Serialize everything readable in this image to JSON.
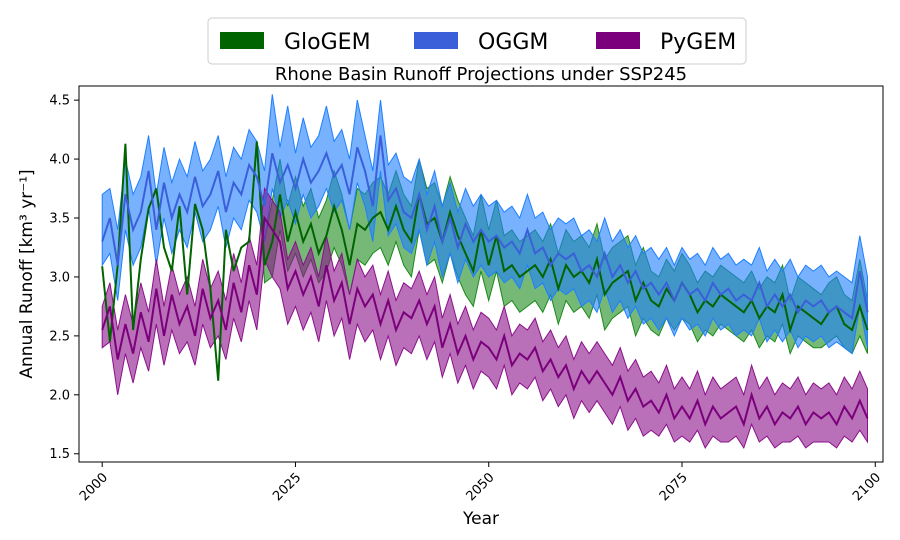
{
  "chart_data": {
    "type": "area",
    "title": "Rhone Basin Runoff Projections under SSP245",
    "xlabel": "Year",
    "ylabel": "Annual Runoff [km³ yr⁻¹]",
    "xlim": [
      1997,
      2101
    ],
    "ylim": [
      1.43,
      4.62
    ],
    "xticks": [
      2000,
      2025,
      2050,
      2075,
      2100
    ],
    "yticks": [
      1.5,
      2.0,
      2.5,
      3.0,
      3.5,
      4.0,
      4.5
    ],
    "grid": false,
    "legend_position": "top-center",
    "start_year": 2000,
    "series": [
      {
        "name": "GloGEM",
        "line_color": "#006400",
        "fill_color": "#1a8a1a",
        "fill_alpha": 0.6,
        "mean": [
          3.09,
          2.45,
          3.1,
          4.13,
          2.55,
          3.15,
          3.58,
          3.75,
          3.25,
          3.05,
          3.6,
          2.85,
          3.62,
          3.4,
          2.9,
          2.12,
          3.4,
          3.05,
          3.25,
          3.3,
          4.15,
          3.1,
          3.3,
          3.7,
          3.3,
          3.55,
          3.3,
          3.45,
          3.2,
          3.35,
          3.6,
          3.4,
          3.1,
          3.45,
          3.4,
          3.5,
          3.55,
          3.4,
          3.6,
          3.4,
          3.3,
          3.7,
          3.45,
          3.5,
          3.3,
          3.55,
          3.35,
          3.2,
          3.05,
          3.4,
          3.1,
          3.35,
          3.05,
          3.1,
          3.0,
          3.05,
          3.1,
          3.0,
          3.15,
          2.9,
          3.1,
          3.0,
          3.05,
          2.95,
          3.15,
          2.85,
          2.95,
          3.0,
          3.05,
          2.8,
          2.95,
          2.8,
          2.75,
          2.9,
          2.8,
          2.95,
          2.85,
          2.7,
          2.8,
          2.75,
          2.85,
          2.8,
          2.75,
          2.7,
          2.8,
          2.65,
          2.75,
          2.7,
          2.85,
          2.55,
          2.75,
          2.7,
          2.65,
          2.6,
          2.7,
          2.75,
          2.6,
          2.55,
          2.75,
          2.55
        ],
        "lower": [
          3.09,
          2.45,
          3.1,
          4.13,
          2.55,
          3.15,
          3.58,
          3.75,
          3.25,
          3.05,
          3.6,
          2.85,
          3.62,
          3.4,
          2.9,
          2.12,
          3.4,
          3.05,
          3.25,
          3.3,
          4.15,
          2.95,
          3.0,
          3.4,
          3.05,
          3.2,
          3.0,
          3.15,
          2.95,
          3.05,
          3.25,
          3.1,
          2.85,
          3.15,
          3.1,
          3.2,
          3.25,
          3.1,
          3.3,
          3.1,
          3.0,
          3.4,
          3.1,
          3.15,
          2.95,
          3.2,
          3.0,
          2.85,
          2.75,
          3.05,
          2.8,
          3.05,
          2.75,
          2.8,
          2.7,
          2.75,
          2.8,
          2.7,
          2.85,
          2.6,
          2.8,
          2.7,
          2.75,
          2.65,
          2.85,
          2.55,
          2.65,
          2.7,
          2.75,
          2.5,
          2.65,
          2.55,
          2.5,
          2.65,
          2.55,
          2.65,
          2.6,
          2.45,
          2.55,
          2.5,
          2.6,
          2.55,
          2.5,
          2.45,
          2.55,
          2.4,
          2.5,
          2.45,
          2.6,
          2.35,
          2.5,
          2.45,
          2.4,
          2.4,
          2.45,
          2.5,
          2.4,
          2.35,
          2.5,
          2.35
        ],
        "upper": [
          3.09,
          2.45,
          3.1,
          4.13,
          2.55,
          3.15,
          3.58,
          3.75,
          3.25,
          3.05,
          3.6,
          2.85,
          3.62,
          3.4,
          2.9,
          2.12,
          3.4,
          3.05,
          3.25,
          3.3,
          4.15,
          3.3,
          3.65,
          4.0,
          3.6,
          3.85,
          3.6,
          3.75,
          3.5,
          3.65,
          3.9,
          3.7,
          3.4,
          3.75,
          3.7,
          3.8,
          3.85,
          3.7,
          3.9,
          3.7,
          3.6,
          4.0,
          3.75,
          3.8,
          3.6,
          3.85,
          3.65,
          3.5,
          3.35,
          3.7,
          3.4,
          3.65,
          3.35,
          3.4,
          3.3,
          3.35,
          3.4,
          3.3,
          3.45,
          3.2,
          3.4,
          3.3,
          3.35,
          3.25,
          3.45,
          3.15,
          3.25,
          3.3,
          3.35,
          3.1,
          3.25,
          3.05,
          3.0,
          3.15,
          3.05,
          3.2,
          3.1,
          2.95,
          3.05,
          3.0,
          3.1,
          3.05,
          3.0,
          2.95,
          3.05,
          2.9,
          3.0,
          2.95,
          3.1,
          2.8,
          3.0,
          2.95,
          2.9,
          2.85,
          2.95,
          3.0,
          2.85,
          2.8,
          3.15,
          2.8
        ]
      },
      {
        "name": "OGGM",
        "line_color": "#3b5fd9",
        "fill_color": "#1e7fff",
        "fill_alpha": 0.6,
        "mean": [
          3.3,
          3.5,
          3.1,
          3.7,
          3.4,
          3.55,
          3.9,
          3.4,
          3.8,
          3.5,
          3.7,
          3.55,
          3.85,
          3.6,
          3.7,
          3.9,
          3.55,
          3.8,
          3.7,
          3.95,
          3.85,
          3.6,
          4.05,
          3.8,
          3.95,
          3.75,
          4.0,
          3.8,
          3.9,
          4.05,
          3.85,
          3.95,
          3.7,
          4.1,
          3.9,
          3.6,
          4.2,
          3.65,
          3.75,
          3.55,
          3.5,
          3.7,
          3.4,
          3.6,
          3.3,
          3.5,
          3.25,
          3.45,
          3.3,
          3.4,
          3.3,
          3.35,
          3.25,
          3.3,
          3.2,
          3.4,
          3.2,
          3.25,
          3.1,
          3.2,
          3.15,
          3.2,
          3.05,
          3.1,
          3.0,
          3.2,
          3.0,
          3.1,
          2.95,
          3.05,
          2.9,
          2.95,
          2.85,
          2.95,
          2.8,
          2.95,
          2.85,
          2.9,
          2.8,
          2.95,
          2.85,
          2.9,
          2.8,
          2.85,
          2.8,
          2.95,
          2.75,
          2.85,
          2.75,
          2.85,
          2.7,
          2.8,
          2.75,
          2.8,
          2.7,
          2.75,
          2.7,
          2.65,
          3.05,
          2.7
        ],
        "lower": [
          3.1,
          3.2,
          2.8,
          3.4,
          3.1,
          3.25,
          3.6,
          3.1,
          3.5,
          3.2,
          3.4,
          3.25,
          3.55,
          3.3,
          3.4,
          3.6,
          3.25,
          3.5,
          3.4,
          3.65,
          3.55,
          3.3,
          3.75,
          3.5,
          3.65,
          3.45,
          3.7,
          3.5,
          3.6,
          3.75,
          3.55,
          3.65,
          3.4,
          3.8,
          3.6,
          3.3,
          3.9,
          3.35,
          3.45,
          3.25,
          3.2,
          3.4,
          3.1,
          3.3,
          3.0,
          3.2,
          2.95,
          3.15,
          3.0,
          3.1,
          3.0,
          3.05,
          2.95,
          3.0,
          2.9,
          3.1,
          2.9,
          2.95,
          2.8,
          2.9,
          2.85,
          2.9,
          2.75,
          2.8,
          2.7,
          2.9,
          2.7,
          2.8,
          2.65,
          2.75,
          2.6,
          2.65,
          2.55,
          2.65,
          2.5,
          2.65,
          2.55,
          2.6,
          2.5,
          2.65,
          2.55,
          2.6,
          2.5,
          2.55,
          2.5,
          2.65,
          2.45,
          2.55,
          2.45,
          2.55,
          2.4,
          2.5,
          2.45,
          2.5,
          2.4,
          2.45,
          2.4,
          2.35,
          2.75,
          2.4
        ],
        "upper": [
          3.7,
          3.75,
          3.4,
          4.0,
          3.7,
          3.85,
          4.2,
          3.7,
          4.1,
          3.8,
          4.0,
          3.85,
          4.15,
          3.9,
          4.0,
          4.2,
          3.85,
          4.1,
          4.0,
          4.25,
          4.15,
          3.9,
          4.55,
          4.1,
          4.45,
          4.05,
          4.35,
          4.1,
          4.2,
          4.45,
          4.15,
          4.25,
          4.0,
          4.5,
          4.2,
          3.9,
          4.5,
          3.95,
          4.05,
          3.85,
          3.8,
          4.0,
          3.7,
          3.9,
          3.6,
          3.8,
          3.55,
          3.75,
          3.6,
          3.7,
          3.6,
          3.65,
          3.55,
          3.6,
          3.5,
          3.7,
          3.5,
          3.55,
          3.4,
          3.5,
          3.45,
          3.5,
          3.35,
          3.4,
          3.3,
          3.5,
          3.3,
          3.4,
          3.25,
          3.35,
          3.2,
          3.25,
          3.15,
          3.25,
          3.1,
          3.25,
          3.15,
          3.2,
          3.1,
          3.25,
          3.15,
          3.2,
          3.1,
          3.15,
          3.1,
          3.25,
          3.05,
          3.15,
          3.05,
          3.15,
          3.0,
          3.1,
          3.05,
          3.1,
          3.0,
          3.05,
          3.0,
          2.95,
          3.35,
          3.0
        ]
      },
      {
        "name": "PyGEM",
        "line_color": "#7b007b",
        "fill_color": "#8b108b",
        "fill_alpha": 0.6,
        "mean": [
          2.55,
          2.75,
          2.3,
          2.6,
          2.35,
          2.7,
          2.45,
          2.9,
          2.5,
          2.85,
          2.6,
          2.75,
          2.5,
          2.9,
          2.65,
          2.8,
          2.55,
          2.95,
          2.7,
          3.1,
          2.85,
          3.5,
          3.4,
          3.3,
          2.9,
          3.05,
          2.85,
          3.0,
          2.75,
          3.1,
          2.8,
          2.95,
          2.6,
          2.9,
          2.75,
          2.85,
          2.6,
          2.8,
          2.55,
          2.7,
          2.65,
          2.8,
          2.6,
          2.75,
          2.4,
          2.6,
          2.35,
          2.5,
          2.3,
          2.45,
          2.4,
          2.3,
          2.5,
          2.25,
          2.35,
          2.3,
          2.4,
          2.2,
          2.3,
          2.15,
          2.25,
          2.05,
          2.2,
          2.1,
          2.2,
          2.1,
          2.0,
          2.15,
          1.95,
          2.05,
          1.9,
          1.95,
          1.85,
          2.0,
          1.8,
          1.9,
          1.8,
          1.95,
          1.75,
          1.9,
          1.8,
          1.85,
          1.9,
          1.75,
          2.0,
          1.8,
          1.9,
          1.75,
          1.85,
          1.8,
          1.9,
          1.75,
          1.85,
          1.8,
          1.85,
          1.75,
          1.9,
          1.8,
          1.95,
          1.8
        ],
        "lower": [
          2.4,
          2.45,
          2.0,
          2.35,
          2.1,
          2.4,
          2.2,
          2.6,
          2.25,
          2.55,
          2.35,
          2.45,
          2.25,
          2.6,
          2.4,
          2.5,
          2.3,
          2.65,
          2.45,
          2.8,
          2.55,
          3.15,
          3.0,
          2.9,
          2.6,
          2.75,
          2.55,
          2.7,
          2.45,
          2.8,
          2.5,
          2.65,
          2.3,
          2.6,
          2.45,
          2.55,
          2.3,
          2.5,
          2.25,
          2.4,
          2.35,
          2.5,
          2.3,
          2.45,
          2.15,
          2.35,
          2.1,
          2.25,
          2.05,
          2.2,
          2.15,
          2.05,
          2.25,
          2.0,
          2.1,
          2.05,
          2.15,
          1.95,
          2.05,
          1.9,
          2.0,
          1.8,
          1.95,
          1.85,
          1.95,
          1.85,
          1.75,
          1.9,
          1.7,
          1.8,
          1.65,
          1.7,
          1.65,
          1.75,
          1.6,
          1.65,
          1.6,
          1.7,
          1.55,
          1.65,
          1.6,
          1.6,
          1.65,
          1.55,
          1.75,
          1.6,
          1.65,
          1.55,
          1.6,
          1.6,
          1.65,
          1.55,
          1.6,
          1.6,
          1.6,
          1.55,
          1.65,
          1.6,
          1.7,
          1.6
        ],
        "upper": [
          2.75,
          2.95,
          2.55,
          2.85,
          2.6,
          2.95,
          2.7,
          3.15,
          2.75,
          3.1,
          2.85,
          3.0,
          2.75,
          3.15,
          2.9,
          3.05,
          2.8,
          3.2,
          2.95,
          3.35,
          3.1,
          3.75,
          3.65,
          3.55,
          3.15,
          3.3,
          3.1,
          3.25,
          3.0,
          3.35,
          3.05,
          3.2,
          2.85,
          3.15,
          3.0,
          3.1,
          2.85,
          3.05,
          2.8,
          2.95,
          2.9,
          3.05,
          2.85,
          3.0,
          2.65,
          2.85,
          2.6,
          2.75,
          2.55,
          2.7,
          2.65,
          2.55,
          2.75,
          2.5,
          2.6,
          2.55,
          2.65,
          2.45,
          2.55,
          2.4,
          2.5,
          2.3,
          2.45,
          2.35,
          2.45,
          2.35,
          2.25,
          2.4,
          2.2,
          2.3,
          2.15,
          2.2,
          2.1,
          2.25,
          2.05,
          2.15,
          2.05,
          2.2,
          2.0,
          2.15,
          2.05,
          2.1,
          2.15,
          2.0,
          2.25,
          2.05,
          2.15,
          2.0,
          2.1,
          2.05,
          2.15,
          2.0,
          2.1,
          2.05,
          2.1,
          2.0,
          2.15,
          2.05,
          2.2,
          2.05
        ]
      }
    ]
  }
}
